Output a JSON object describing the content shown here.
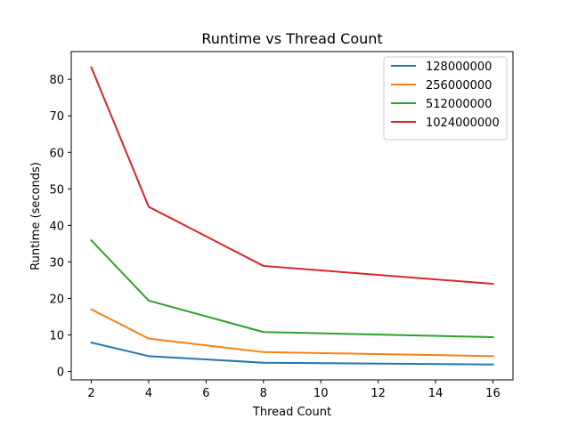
{
  "chart_data": {
    "type": "line",
    "title": "Runtime vs Thread Count",
    "xlabel": "Thread Count",
    "ylabel": "Runtime (seconds)",
    "x": [
      2,
      4,
      8,
      16
    ],
    "xlim": [
      1.3,
      16.7
    ],
    "ylim": [
      -2.3,
      87.6
    ],
    "xticks": [
      2,
      4,
      6,
      8,
      10,
      12,
      14,
      16
    ],
    "yticks": [
      0,
      10,
      20,
      30,
      40,
      50,
      60,
      70,
      80
    ],
    "grid": false,
    "legend_position": "top-right",
    "series": [
      {
        "name": "128000000",
        "color": "#1f77b4",
        "values": [
          7.9,
          4.2,
          2.4,
          1.9
        ]
      },
      {
        "name": "256000000",
        "color": "#ff7f0e",
        "values": [
          17.0,
          9.0,
          5.3,
          4.2
        ]
      },
      {
        "name": "512000000",
        "color": "#2ca02c",
        "values": [
          35.9,
          19.4,
          10.8,
          9.4
        ]
      },
      {
        "name": "1024000000",
        "color": "#d62728",
        "values": [
          83.3,
          45.1,
          28.9,
          24.0
        ]
      }
    ]
  }
}
